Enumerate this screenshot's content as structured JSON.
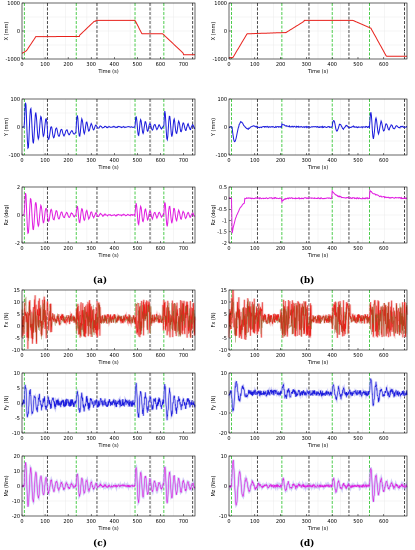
{
  "colors": {
    "red": "#e8211b",
    "blue": "#1a1adc",
    "magenta": "#e01de0",
    "noise": "#f0a5a5",
    "fx_dark": "#7a6a20",
    "green_marker": "#22c022",
    "black_marker": "#222222"
  },
  "captions": [
    "(a)",
    "(b)",
    "(c)",
    "(d)"
  ],
  "chart_data": [
    {
      "id": "a1",
      "type": "line",
      "ylabel": "X (mm)",
      "xlabel": "Time (s)",
      "xlim": [
        0,
        750
      ],
      "ylim": [
        -1000,
        1000
      ],
      "xticks": [
        "0",
        "100",
        "200",
        "300",
        "400",
        "500",
        "600",
        "700"
      ],
      "yticks": [
        "1000",
        "0",
        "-1000"
      ],
      "series_color": "red",
      "green_markers": [
        10,
        235,
        490,
        615
      ],
      "black_markers": [
        110,
        325,
        555,
        740
      ]
    },
    {
      "id": "b1",
      "type": "line",
      "ylabel": "X (mm)",
      "xlabel": "Time (s)",
      "xlim": [
        0,
        690
      ],
      "ylim": [
        -1000,
        1000
      ],
      "xticks": [
        "0",
        "100",
        "200",
        "300",
        "400",
        "500",
        "600"
      ],
      "yticks": [
        "1000",
        "0",
        "-1000"
      ],
      "series_color": "red",
      "green_markers": [
        10,
        205,
        400,
        545
      ],
      "black_markers": [
        110,
        310,
        465,
        680
      ]
    },
    {
      "id": "a2",
      "type": "line",
      "ylabel": "Y (mm)",
      "xlabel": "Time (s)",
      "xlim": [
        0,
        750
      ],
      "ylim": [
        -100,
        100
      ],
      "xticks": [
        "0",
        "100",
        "200",
        "300",
        "400",
        "500",
        "600",
        "700"
      ],
      "yticks": [
        "100",
        "0",
        "-100"
      ],
      "series_color": "blue",
      "green_markers": [
        10,
        235,
        490,
        615
      ],
      "black_markers": [
        110,
        325,
        555,
        740
      ]
    },
    {
      "id": "b2",
      "type": "line",
      "ylabel": "Y (mm)",
      "xlabel": "Time (s)",
      "xlim": [
        0,
        690
      ],
      "ylim": [
        -100,
        100
      ],
      "xticks": [
        "0",
        "100",
        "200",
        "300",
        "400",
        "500",
        "600"
      ],
      "yticks": [
        "100",
        "0",
        "-100"
      ],
      "series_color": "blue",
      "green_markers": [
        10,
        205,
        400,
        545
      ],
      "black_markers": [
        110,
        310,
        465,
        680
      ]
    },
    {
      "id": "a3",
      "type": "line",
      "ylabel": "Rz (deg)",
      "xlabel": "Time (s)",
      "xlim": [
        0,
        750
      ],
      "ylim": [
        -2,
        2
      ],
      "xticks": [
        "0",
        "100",
        "200",
        "300",
        "400",
        "500",
        "600",
        "700"
      ],
      "yticks": [
        "2",
        "0",
        "-2"
      ],
      "series_color": "magenta",
      "green_markers": [
        10,
        235,
        490,
        615
      ],
      "black_markers": [
        110,
        325,
        555,
        740
      ]
    },
    {
      "id": "b3",
      "type": "line",
      "ylabel": "Rz (deg)",
      "xlabel": "Time (s)",
      "xlim": [
        0,
        690
      ],
      "ylim": [
        -2,
        0.5
      ],
      "xticks": [
        "0",
        "100",
        "200",
        "300",
        "400",
        "500",
        "600"
      ],
      "yticks": [
        "0.5",
        "0",
        "-0.5",
        "-1",
        "-1.5",
        "-2"
      ],
      "series_color": "magenta",
      "green_markers": [
        10,
        205,
        400,
        545
      ],
      "black_markers": [
        110,
        310,
        465,
        680
      ]
    },
    {
      "id": "c1",
      "type": "line",
      "ylabel": "Fx (N)",
      "xlabel": "Time (s)",
      "xlim": [
        0,
        750
      ],
      "ylim": [
        -10,
        15
      ],
      "xticks": [
        "0",
        "100",
        "200",
        "300",
        "400",
        "500",
        "600",
        "700"
      ],
      "yticks": [
        "15",
        "10",
        "5",
        "0",
        "-5",
        "-10"
      ],
      "series_color": "red",
      "green_markers": [
        10,
        235,
        490,
        615
      ],
      "black_markers": [
        110,
        325,
        555,
        740
      ]
    },
    {
      "id": "d1",
      "type": "line",
      "ylabel": "Fx (N)",
      "xlabel": "Time (s)",
      "xlim": [
        0,
        690
      ],
      "ylim": [
        -10,
        15
      ],
      "xticks": [
        "0",
        "100",
        "200",
        "300",
        "400",
        "500",
        "600"
      ],
      "yticks": [
        "15",
        "10",
        "5",
        "0",
        "-5",
        "-10"
      ],
      "series_color": "red",
      "green_markers": [
        10,
        205,
        400,
        545
      ],
      "black_markers": [
        110,
        310,
        465,
        680
      ]
    },
    {
      "id": "c2",
      "type": "line",
      "ylabel": "Fy (N)",
      "xlabel": "Time (s)",
      "xlim": [
        0,
        750
      ],
      "ylim": [
        -10,
        10
      ],
      "xticks": [
        "0",
        "100",
        "200",
        "300",
        "400",
        "500",
        "600",
        "700"
      ],
      "yticks": [
        "10",
        "5",
        "0",
        "-5",
        "-10"
      ],
      "series_color": "blue",
      "green_markers": [
        10,
        235,
        490,
        615
      ],
      "black_markers": [
        110,
        325,
        555,
        740
      ]
    },
    {
      "id": "d2",
      "type": "line",
      "ylabel": "Fy (N)",
      "xlabel": "Time (s)",
      "xlim": [
        0,
        690
      ],
      "ylim": [
        -20,
        10
      ],
      "xticks": [
        "0",
        "100",
        "200",
        "300",
        "400",
        "500",
        "600"
      ],
      "yticks": [
        "10",
        "0",
        "-10",
        "-20"
      ],
      "series_color": "blue",
      "green_markers": [
        10,
        205,
        400,
        545
      ],
      "black_markers": [
        110,
        310,
        465,
        680
      ]
    },
    {
      "id": "c3",
      "type": "line",
      "ylabel": "Mz (Nm)",
      "xlabel": "Time (s)",
      "xlim": [
        0,
        750
      ],
      "ylim": [
        -20,
        20
      ],
      "xticks": [
        "0",
        "100",
        "200",
        "300",
        "400",
        "500",
        "600",
        "700"
      ],
      "yticks": [
        "20",
        "10",
        "0",
        "-10",
        "-20"
      ],
      "series_color": "magenta",
      "green_markers": [
        10,
        235,
        490,
        615
      ],
      "black_markers": [
        110,
        325,
        555,
        740
      ]
    },
    {
      "id": "d3",
      "type": "line",
      "ylabel": "Mz (Nm)",
      "xlabel": "Time (s)",
      "xlim": [
        0,
        690
      ],
      "ylim": [
        -10,
        10
      ],
      "xticks": [
        "0",
        "100",
        "200",
        "300",
        "400",
        "500",
        "600"
      ],
      "yticks": [
        "10",
        "0",
        "-10"
      ],
      "series_color": "magenta",
      "green_markers": [
        10,
        205,
        400,
        545
      ],
      "black_markers": [
        110,
        310,
        465,
        680
      ]
    }
  ]
}
